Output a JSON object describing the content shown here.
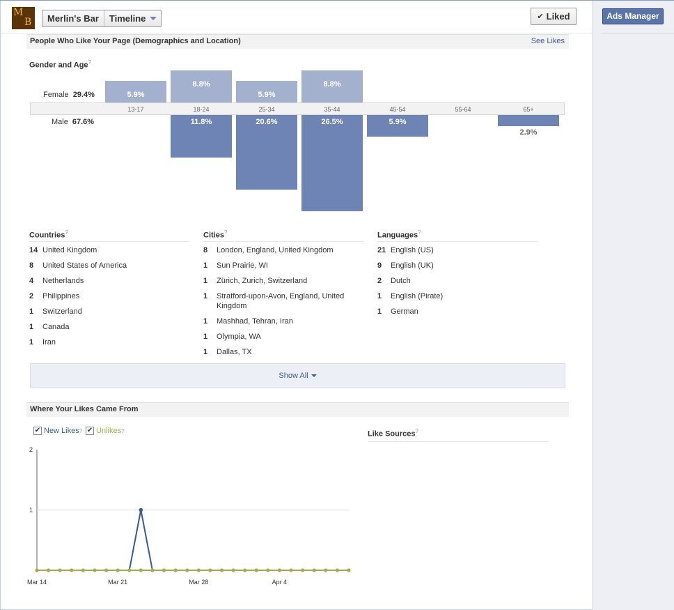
{
  "header": {
    "page_name": "Merlin's Bar",
    "timeline_label": "Timeline",
    "liked_label": "Liked",
    "logo_letters": [
      "M",
      "B"
    ]
  },
  "right": {
    "ads_manager_label": "Ads Manager"
  },
  "demographics": {
    "title": "People Who Like Your Page (Demographics and Location)",
    "see_likes_label": "See Likes",
    "gender_age_title": "Gender and Age",
    "female_label": "Female",
    "female_pct": "29.4%",
    "male_label": "Male",
    "male_pct": "67.6%",
    "chart_data": {
      "type": "bar",
      "categories": [
        "13-17",
        "18-24",
        "25-34",
        "35-44",
        "45-54",
        "55-64",
        "65+"
      ],
      "series": [
        {
          "name": "Female",
          "values": [
            5.9,
            8.8,
            5.9,
            8.8,
            0,
            0,
            0
          ],
          "labels": [
            "5.9%",
            "8.8%",
            "5.9%",
            "8.8%",
            "",
            "",
            ""
          ]
        },
        {
          "name": "Male",
          "values": [
            0,
            11.8,
            20.6,
            26.5,
            5.9,
            0,
            2.9
          ],
          "labels": [
            "",
            "11.8%",
            "20.6%",
            "26.5%",
            "5.9%",
            "",
            "2.9%"
          ]
        }
      ]
    }
  },
  "countries": {
    "title": "Countries",
    "items": [
      {
        "count": "14",
        "name": "United Kingdom"
      },
      {
        "count": "8",
        "name": "United States of America"
      },
      {
        "count": "4",
        "name": "Netherlands"
      },
      {
        "count": "2",
        "name": "Philippines"
      },
      {
        "count": "1",
        "name": "Switzerland"
      },
      {
        "count": "1",
        "name": "Canada"
      },
      {
        "count": "1",
        "name": "Iran"
      }
    ]
  },
  "cities": {
    "title": "Cities",
    "items": [
      {
        "count": "8",
        "name": "London, England, United Kingdom"
      },
      {
        "count": "1",
        "name": "Sun Prairie, WI"
      },
      {
        "count": "1",
        "name": "Zürich, Zurich, Switzerland"
      },
      {
        "count": "1",
        "name": "Stratford-upon-Avon, England, United Kingdom"
      },
      {
        "count": "1",
        "name": "Mashhad, Tehran, Iran"
      },
      {
        "count": "1",
        "name": "Olympia, WA"
      },
      {
        "count": "1",
        "name": "Dallas, TX"
      }
    ]
  },
  "languages": {
    "title": "Languages",
    "items": [
      {
        "count": "21",
        "name": "English (US)"
      },
      {
        "count": "9",
        "name": "English (UK)"
      },
      {
        "count": "2",
        "name": "Dutch"
      },
      {
        "count": "1",
        "name": "English (Pirate)"
      },
      {
        "count": "1",
        "name": "German"
      }
    ]
  },
  "show_all_label": "Show All",
  "likes_from": {
    "title": "Where Your Likes Came From",
    "new_likes_label": "New Likes",
    "unlikes_label": "Unlikes",
    "like_sources_title": "Like Sources",
    "colors": {
      "new_likes": "#3b5998",
      "unlikes": "#9cb050"
    },
    "chart_data": {
      "type": "line",
      "x_tick_labels": [
        "Mar 14",
        "Mar 21",
        "Mar 28",
        "Apr 4"
      ],
      "y_ticks": [
        1,
        2
      ],
      "ylim": [
        0,
        2
      ],
      "series": [
        {
          "name": "New Likes",
          "values": [
            0,
            0,
            0,
            0,
            0,
            0,
            0,
            0,
            0,
            1,
            0,
            0,
            0,
            0,
            0,
            0,
            0,
            0,
            0,
            0,
            0,
            0,
            0,
            0,
            0,
            0,
            0,
            0
          ]
        },
        {
          "name": "Unlikes",
          "values": [
            0,
            0,
            0,
            0,
            0,
            0,
            0,
            0,
            0,
            0,
            0,
            0,
            0,
            0,
            0,
            0,
            0,
            0,
            0,
            0,
            0,
            0,
            0,
            0,
            0,
            0,
            0,
            0
          ]
        }
      ]
    }
  }
}
